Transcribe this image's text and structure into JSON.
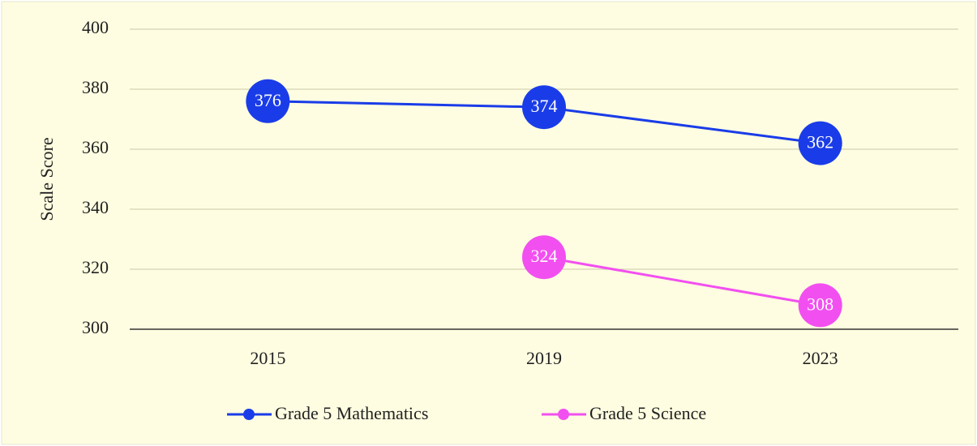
{
  "chart_data": {
    "type": "line",
    "y_label": "Scale  Score",
    "categories": [
      "2015",
      "2019",
      "2023"
    ],
    "series": [
      {
        "name": "Grade 5 Mathematics",
        "color": "#1a3ce8",
        "values": [
          376,
          374,
          362
        ]
      },
      {
        "name": "Grade 5 Science",
        "color": "#f24ff0",
        "values": [
          null,
          324,
          308
        ]
      }
    ],
    "ylim": [
      300,
      400
    ],
    "yticks": [
      300,
      320,
      340,
      360,
      380,
      400
    ],
    "grid": true,
    "legend": "bottom"
  }
}
